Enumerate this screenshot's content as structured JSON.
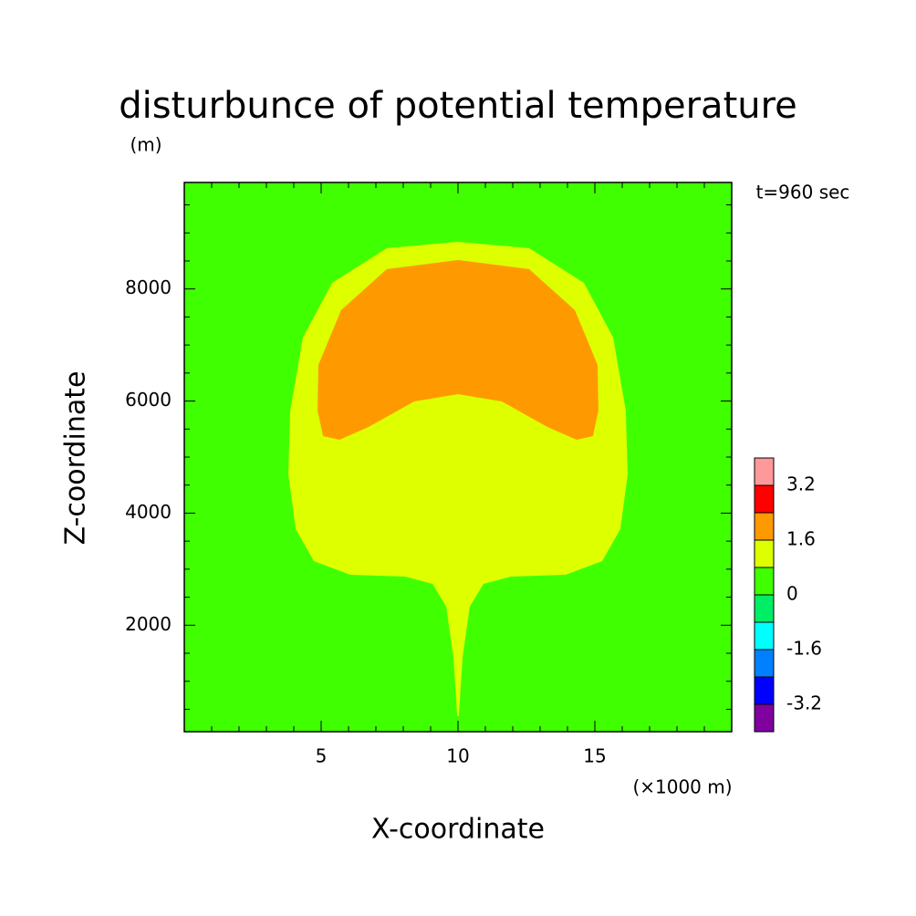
{
  "chart_data": {
    "type": "contour",
    "title": "disturbunce of potential temperature",
    "subtitle": "t=960 sec",
    "xlabel": "X-coordinate",
    "xunit": "(×1000 m)",
    "ylabel": "Z-coordinate",
    "yunit": "(m)",
    "xlim": [
      0,
      20
    ],
    "ylim": [
      100,
      9900
    ],
    "xticks": [
      5,
      10,
      15
    ],
    "yticks": [
      2000,
      4000,
      6000,
      8000
    ],
    "xminorticks": [
      1,
      2,
      3,
      4,
      6,
      7,
      8,
      9,
      11,
      12,
      13,
      14,
      16,
      17,
      18,
      19
    ],
    "yminorticks": [
      500,
      1000,
      1500,
      2500,
      3000,
      3500,
      4500,
      5000,
      5500,
      6500,
      7000,
      7500,
      8500,
      9000,
      9500
    ],
    "background": "#40ff00",
    "regions": [
      {
        "color": "#ddff00",
        "x": [
          10,
          12.6,
          14.6,
          15.67,
          16.13,
          16.2,
          15.93,
          15.27,
          13.93,
          11.93,
          10.93,
          10.43,
          10.17,
          10.03,
          9.97,
          9.83,
          9.57,
          9.07,
          8.07,
          6.07,
          4.73,
          4.07,
          3.8,
          3.87,
          4.33,
          5.4,
          7.4
        ],
        "y": [
          8842,
          8727,
          8109,
          7132,
          5830,
          4690,
          3714,
          3144,
          2900,
          2867,
          2737,
          2330,
          1435,
          377,
          377,
          1435,
          2330,
          2737,
          2867,
          2900,
          3144,
          3714,
          4690,
          5830,
          7132,
          8109,
          8727
        ]
      },
      {
        "color": "#ff9900",
        "x": [
          10,
          12.6,
          14.27,
          15.1,
          15.13,
          14.93,
          14.33,
          13.27,
          11.6,
          10,
          8.4,
          6.73,
          5.67,
          5.07,
          4.87,
          4.9,
          5.73,
          7.4
        ],
        "y": [
          8516,
          8353,
          7621,
          6644,
          5830,
          5374,
          5309,
          5537,
          5993,
          6123,
          5993,
          5537,
          5309,
          5374,
          5830,
          6644,
          7621,
          8353
        ]
      }
    ],
    "colorbar": {
      "bounds": [
        -4,
        -3.2,
        -2.4,
        -1.6,
        -0.8,
        0,
        0.8,
        1.6,
        2.4,
        3.2,
        4
      ],
      "colors": [
        "#8000a0",
        "#0000ff",
        "#0080ff",
        "#00ffff",
        "#00ee66",
        "#40ff00",
        "#ddff00",
        "#ff9900",
        "#ff0000",
        "#ff9999"
      ],
      "ticks": [
        -3.2,
        -1.6,
        0,
        1.6,
        3.2
      ]
    }
  }
}
